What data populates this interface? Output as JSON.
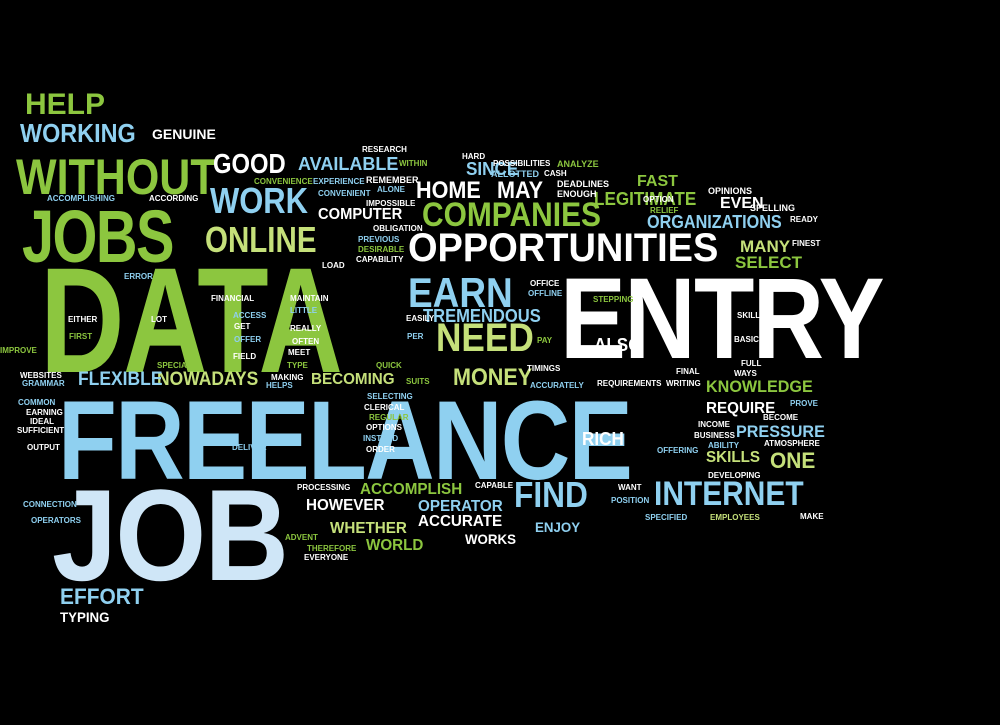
{
  "palette": {
    "background": "#000000",
    "green": "#8cc63f",
    "light_green": "#c5e07a",
    "light_blue": "#8fd0f0",
    "pale_blue": "#cfe6f7",
    "white": "#ffffff"
  },
  "words": [
    {
      "text": "DATA",
      "color": "green"
    },
    {
      "text": "ENTRY",
      "color": "white"
    },
    {
      "text": "FREELANCE",
      "color": "light_blue"
    },
    {
      "text": "JOB",
      "color": "pale_blue"
    },
    {
      "text": "JOBS",
      "color": "green"
    },
    {
      "text": "OPPORTUNITIES",
      "color": "white"
    },
    {
      "text": "WITHOUT",
      "color": "green"
    },
    {
      "text": "COMPANIES",
      "color": "green"
    },
    {
      "text": "EARN",
      "color": "light_blue"
    },
    {
      "text": "ONLINE",
      "color": "light_green"
    },
    {
      "text": "NEED",
      "color": "light_green"
    },
    {
      "text": "INTERNET",
      "color": "light_blue"
    },
    {
      "text": "FIND",
      "color": "light_blue"
    },
    {
      "text": "HELP",
      "color": "green"
    },
    {
      "text": "WORKING",
      "color": "light_blue"
    },
    {
      "text": "GENUINE",
      "color": "white"
    },
    {
      "text": "GOOD",
      "color": "white"
    },
    {
      "text": "WORK",
      "color": "light_blue"
    },
    {
      "text": "AVAILABLE",
      "color": "light_blue"
    },
    {
      "text": "HOME",
      "color": "white"
    },
    {
      "text": "MAY",
      "color": "white"
    },
    {
      "text": "SINCE",
      "color": "light_blue"
    },
    {
      "text": "FAST",
      "color": "green"
    },
    {
      "text": "LEGITIMATE",
      "color": "green"
    },
    {
      "text": "EVEN",
      "color": "white"
    },
    {
      "text": "ORGANIZATIONS",
      "color": "light_blue"
    },
    {
      "text": "MANY",
      "color": "light_green"
    },
    {
      "text": "SELECT",
      "color": "green"
    },
    {
      "text": "TREMENDOUS",
      "color": "light_blue"
    },
    {
      "text": "COMPUTER",
      "color": "white"
    },
    {
      "text": "ALSO",
      "color": "white"
    },
    {
      "text": "MONEY",
      "color": "light_green"
    },
    {
      "text": "NOWADAYS",
      "color": "light_green"
    },
    {
      "text": "FLEXIBLE",
      "color": "light_blue"
    },
    {
      "text": "BECOMING",
      "color": "light_green"
    },
    {
      "text": "KNOWLEDGE",
      "color": "green"
    },
    {
      "text": "REQUIRE",
      "color": "white"
    },
    {
      "text": "PRESSURE",
      "color": "light_blue"
    },
    {
      "text": "RICH",
      "color": "white"
    },
    {
      "text": "SKILLS",
      "color": "light_green"
    },
    {
      "text": "ONE",
      "color": "light_green"
    },
    {
      "text": "ACCOMPLISH",
      "color": "green"
    },
    {
      "text": "OPERATOR",
      "color": "light_blue"
    },
    {
      "text": "HOWEVER",
      "color": "white"
    },
    {
      "text": "ACCURATE",
      "color": "white"
    },
    {
      "text": "WHETHER",
      "color": "light_green"
    },
    {
      "text": "WORLD",
      "color": "green"
    },
    {
      "text": "WORKS",
      "color": "white"
    },
    {
      "text": "ENJOY",
      "color": "light_blue"
    },
    {
      "text": "EFFORT",
      "color": "light_blue"
    },
    {
      "text": "TYPING",
      "color": "white"
    },
    {
      "text": "RESEARCH",
      "color": "white"
    },
    {
      "text": "HARD",
      "color": "white"
    },
    {
      "text": "POSSIBILITIES",
      "color": "white"
    },
    {
      "text": "ANALYZE",
      "color": "green"
    },
    {
      "text": "WITHIN",
      "color": "green"
    },
    {
      "text": "ALLOTTED",
      "color": "light_blue"
    },
    {
      "text": "CASH",
      "color": "white"
    },
    {
      "text": "CONVENIENCE",
      "color": "green"
    },
    {
      "text": "EXPERIENCE",
      "color": "light_blue"
    },
    {
      "text": "REMEMBER",
      "color": "white"
    },
    {
      "text": "DEADLINES",
      "color": "white"
    },
    {
      "text": "ENOUGH",
      "color": "white"
    },
    {
      "text": "OPINIONS",
      "color": "white"
    },
    {
      "text": "ALONE",
      "color": "light_blue"
    },
    {
      "text": "SPELLING",
      "color": "white"
    },
    {
      "text": "READY",
      "color": "white"
    },
    {
      "text": "ACCOMPLISHING",
      "color": "light_blue"
    },
    {
      "text": "ACCORDING",
      "color": "white"
    },
    {
      "text": "CONVENIENT",
      "color": "light_blue"
    },
    {
      "text": "IMPOSSIBLE",
      "color": "white"
    },
    {
      "text": "RELIEF",
      "color": "green"
    },
    {
      "text": "OPTION",
      "color": "white"
    },
    {
      "text": "OBLIGATION",
      "color": "white"
    },
    {
      "text": "PREVIOUS",
      "color": "light_blue"
    },
    {
      "text": "DESIRABLE",
      "color": "green"
    },
    {
      "text": "FINEST",
      "color": "white"
    },
    {
      "text": "LOAD",
      "color": "white"
    },
    {
      "text": "CAPABILITY",
      "color": "white"
    },
    {
      "text": "ERROR",
      "color": "light_blue"
    },
    {
      "text": "OFFICE",
      "color": "white"
    },
    {
      "text": "OFFLINE",
      "color": "light_blue"
    },
    {
      "text": "STEPPING",
      "color": "green"
    },
    {
      "text": "FINANCIAL",
      "color": "white"
    },
    {
      "text": "MAINTAIN",
      "color": "white"
    },
    {
      "text": "LITTLE",
      "color": "light_blue"
    },
    {
      "text": "EASILY",
      "color": "white"
    },
    {
      "text": "SKILL",
      "color": "white"
    },
    {
      "text": "ACCESS",
      "color": "light_blue"
    },
    {
      "text": "EITHER",
      "color": "white"
    },
    {
      "text": "LOT",
      "color": "white"
    },
    {
      "text": "REALLY",
      "color": "white"
    },
    {
      "text": "GET",
      "color": "white"
    },
    {
      "text": "FIRST",
      "color": "green"
    },
    {
      "text": "OFFER",
      "color": "light_blue"
    },
    {
      "text": "OFTEN",
      "color": "white"
    },
    {
      "text": "PER",
      "color": "light_blue"
    },
    {
      "text": "PAY",
      "color": "green"
    },
    {
      "text": "BASIC",
      "color": "white"
    },
    {
      "text": "IMPROVE",
      "color": "green"
    },
    {
      "text": "MEET",
      "color": "white"
    },
    {
      "text": "FIELD",
      "color": "white"
    },
    {
      "text": "SPECIAL",
      "color": "green"
    },
    {
      "text": "QUICK",
      "color": "green"
    },
    {
      "text": "TYPE",
      "color": "green"
    },
    {
      "text": "FINAL",
      "color": "white"
    },
    {
      "text": "FULL",
      "color": "white"
    },
    {
      "text": "WAYS",
      "color": "white"
    },
    {
      "text": "WEBSITES",
      "color": "white"
    },
    {
      "text": "GRAMMAR",
      "color": "light_blue"
    },
    {
      "text": "MAKING",
      "color": "white"
    },
    {
      "text": "HELPS",
      "color": "light_blue"
    },
    {
      "text": "TIMINGS",
      "color": "white"
    },
    {
      "text": "SUITS",
      "color": "green"
    },
    {
      "text": "ACCURATELY",
      "color": "light_blue"
    },
    {
      "text": "REQUIREMENTS",
      "color": "white"
    },
    {
      "text": "WRITING",
      "color": "white"
    },
    {
      "text": "SELECTING",
      "color": "light_blue"
    },
    {
      "text": "COMMON",
      "color": "light_blue"
    },
    {
      "text": "EARNING",
      "color": "white"
    },
    {
      "text": "IDEAL",
      "color": "white"
    },
    {
      "text": "SUFFICIENT",
      "color": "white"
    },
    {
      "text": "CLERICAL",
      "color": "white"
    },
    {
      "text": "REGULAR",
      "color": "green"
    },
    {
      "text": "OPTIONS",
      "color": "white"
    },
    {
      "text": "PROVE",
      "color": "light_blue"
    },
    {
      "text": "BECOME",
      "color": "white"
    },
    {
      "text": "INCOME",
      "color": "white"
    },
    {
      "text": "BUSINESS",
      "color": "white"
    },
    {
      "text": "ABILITY",
      "color": "light_blue"
    },
    {
      "text": "ATMOSPHERE",
      "color": "white"
    },
    {
      "text": "INSTEAD",
      "color": "light_blue"
    },
    {
      "text": "ORDER",
      "color": "white"
    },
    {
      "text": "OUTPUT",
      "color": "white"
    },
    {
      "text": "DELIVER",
      "color": "light_blue"
    },
    {
      "text": "OFFERING",
      "color": "light_blue"
    },
    {
      "text": "DEVELOPING",
      "color": "white"
    },
    {
      "text": "PROCESSING",
      "color": "white"
    },
    {
      "text": "CAPABLE",
      "color": "white"
    },
    {
      "text": "WANT",
      "color": "white"
    },
    {
      "text": "POSITION",
      "color": "light_blue"
    },
    {
      "text": "CONNECTION",
      "color": "light_blue"
    },
    {
      "text": "OPERATORS",
      "color": "light_blue"
    },
    {
      "text": "SPECIFIED",
      "color": "light_blue"
    },
    {
      "text": "EMPLOYEES",
      "color": "light_green"
    },
    {
      "text": "MAKE",
      "color": "white"
    },
    {
      "text": "ADVENT",
      "color": "green"
    },
    {
      "text": "THEREFORE",
      "color": "green"
    },
    {
      "text": "EVERYONE",
      "color": "white"
    }
  ]
}
